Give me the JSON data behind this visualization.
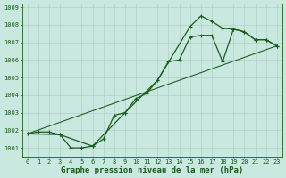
{
  "xlabel": "Graphe pression niveau de la mer (hPa)",
  "background_color": "#c8e8e0",
  "grid_color": "#aacfc8",
  "line_color": "#1a5c1a",
  "ylim": [
    1000.5,
    1009.2
  ],
  "xlim": [
    -0.5,
    23.5
  ],
  "yticks": [
    1001,
    1002,
    1003,
    1004,
    1005,
    1006,
    1007,
    1008,
    1009
  ],
  "xticks": [
    0,
    1,
    2,
    3,
    4,
    5,
    6,
    7,
    8,
    9,
    10,
    11,
    12,
    13,
    14,
    15,
    16,
    17,
    18,
    19,
    20,
    21,
    22,
    23
  ],
  "line1_x": [
    0,
    1,
    2,
    3,
    4,
    5,
    6,
    7,
    8,
    9,
    10,
    11,
    12,
    13,
    14,
    15,
    16,
    17,
    18,
    19,
    20,
    21,
    22,
    23
  ],
  "line1_y": [
    1001.8,
    1001.9,
    1001.9,
    1001.75,
    1001.0,
    1001.0,
    1001.1,
    1001.5,
    1002.85,
    1003.0,
    1003.8,
    1004.1,
    1004.85,
    1005.9,
    1006.0,
    1007.3,
    1007.4,
    1007.4,
    1005.9,
    1007.75,
    1007.6,
    1007.15,
    1007.15,
    1006.8
  ],
  "line2_x": [
    0,
    23
  ],
  "line2_y": [
    1001.8,
    1006.8
  ],
  "line3_x": [
    0,
    3,
    6,
    9,
    12,
    15,
    16,
    17,
    18,
    19,
    20,
    21,
    22,
    23
  ],
  "line3_y": [
    1001.8,
    1001.75,
    1001.1,
    1003.0,
    1004.85,
    1007.9,
    1008.5,
    1008.2,
    1007.8,
    1007.75,
    1007.6,
    1007.15,
    1007.15,
    1006.8
  ],
  "markersize": 3,
  "linewidth": 0.9,
  "tick_fontsize": 5,
  "xlabel_fontsize": 6.5
}
